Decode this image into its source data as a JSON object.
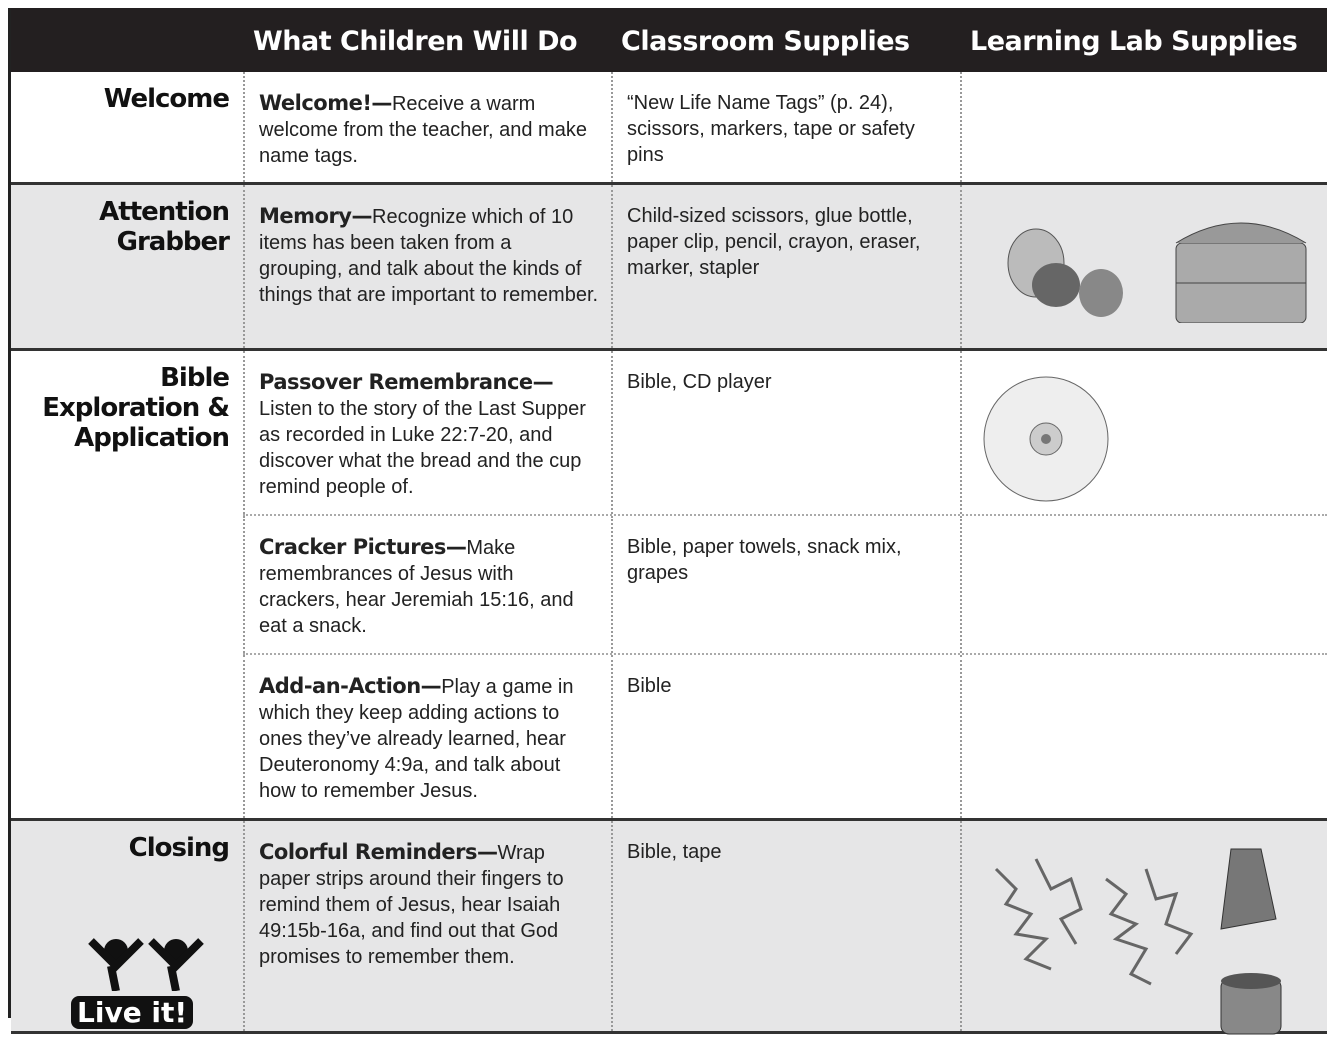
{
  "header": {
    "columns": [
      "What Children Will Do",
      "Classroom Supplies",
      "Learning Lab Supplies"
    ]
  },
  "sections": [
    {
      "label": "Welcome",
      "activities": [
        {
          "title": "Welcome!—",
          "description": "Receive a warm welcome from the teacher, and make name tags.",
          "supplies": "“New Life Name Tags” (p. 24), scissors, markers, tape or safety pins"
        }
      ]
    },
    {
      "label": "Attention Grabber",
      "activities": [
        {
          "title": "Memory—",
          "description": "Recognize which of 10 items has been taken from a grouping, and talk about the kinds of things that are important to remember.",
          "supplies": "Child-sized scissors, glue bottle, paper clip, pencil, crayon, eraser, marker, stapler"
        }
      ]
    },
    {
      "label": "Bible Exploration & Application",
      "activities": [
        {
          "title": "Passover Remembrance—",
          "description": "Listen to the story of the Last Supper as recorded in Luke 22:7-20, and discover what the bread and the cup remind people of.",
          "supplies": "Bible, CD player"
        },
        {
          "title": "Cracker Pictures—",
          "description": "Make remembrances of Jesus with crackers, hear Jeremiah 15:16, and eat a snack.",
          "supplies": "Bible, paper towels, snack mix, grapes"
        },
        {
          "title": "Add-an-Action—",
          "description": "Play a game in which they keep adding actions to ones they’ve already learned, hear Deuteronomy 4:9a, and talk about how to remember Jesus.",
          "supplies": "Bible"
        }
      ]
    },
    {
      "label": "Closing",
      "logo_text": "Live it!",
      "activities": [
        {
          "title": "Colorful Reminders—",
          "description": "Wrap paper strips around their fingers to remind them of Jesus, hear Isaiah 49:15b-16a, and find out that God promises to remember them.",
          "supplies": "Bible, tape"
        }
      ]
    }
  ]
}
